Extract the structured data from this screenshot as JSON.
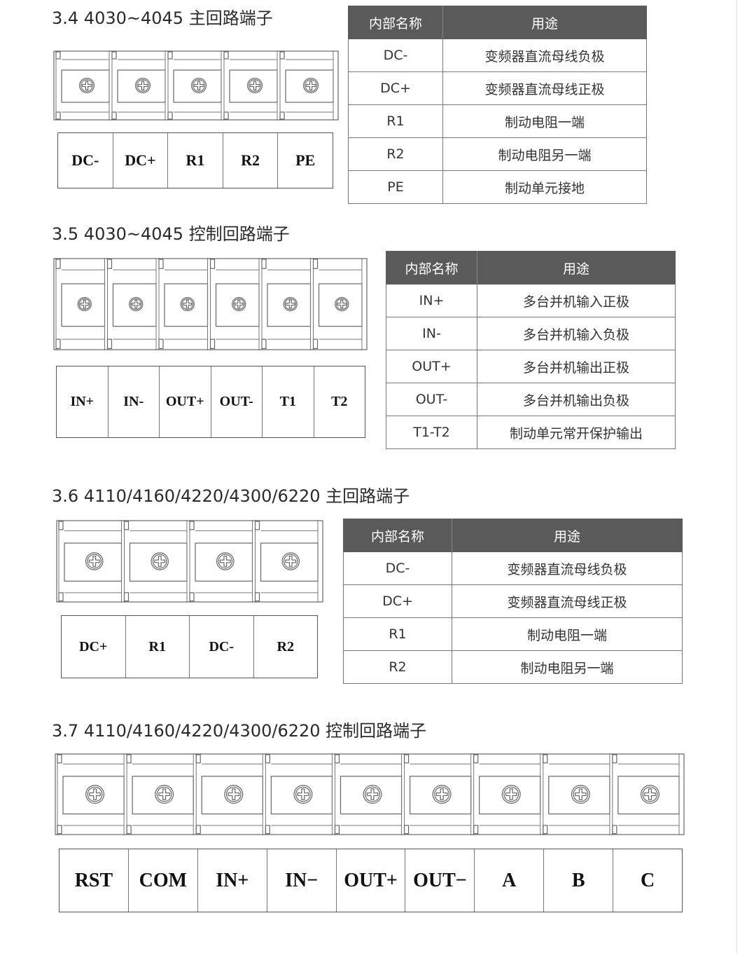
{
  "sections": [
    {
      "title": "3.4 4030~4045 主回路端子",
      "terminals": [
        "DC-",
        "DC+",
        "R1",
        "R2",
        "PE"
      ],
      "table": {
        "headers": [
          "内部名称",
          "用途"
        ],
        "rows": [
          [
            "DC-",
            "变频器直流母线负极"
          ],
          [
            "DC+",
            "变频器直流母线正极"
          ],
          [
            "R1",
            "制动电阻一端"
          ],
          [
            "R2",
            "制动电阻另一端"
          ],
          [
            "PE",
            "制动单元接地"
          ]
        ]
      }
    },
    {
      "title": "3.5 4030~4045 控制回路端子",
      "terminals": [
        "IN+",
        "IN-",
        "OUT+",
        "OUT-",
        "T1",
        "T2"
      ],
      "table": {
        "headers": [
          "内部名称",
          "用途"
        ],
        "rows": [
          [
            "IN+",
            "多台并机输入正极"
          ],
          [
            "IN-",
            "多台并机输入负极"
          ],
          [
            "OUT+",
            "多台并机输出正极"
          ],
          [
            "OUT-",
            "多台并机输出负极"
          ],
          [
            "T1-T2",
            "制动单元常开保护输出"
          ]
        ]
      }
    },
    {
      "title": "3.6  4110/4160/4220/4300/6220 主回路端子",
      "terminals": [
        "DC+",
        "R1",
        "DC-",
        "R2"
      ],
      "table": {
        "headers": [
          "内部名称",
          "用途"
        ],
        "rows": [
          [
            "DC-",
            "变频器直流母线负极"
          ],
          [
            "DC+",
            "变频器直流母线正极"
          ],
          [
            "R1",
            "制动电阻一端"
          ],
          [
            "R2",
            "制动电阻另一端"
          ]
        ]
      }
    },
    {
      "title": "3.7 4110/4160/4220/4300/6220 控制回路端子",
      "terminals": [
        "RST",
        "COM",
        "IN+",
        "IN−",
        "OUT+",
        "OUT−",
        "A",
        "B",
        "C"
      ]
    }
  ],
  "colors": {
    "table_header": "#5a5a5a"
  }
}
